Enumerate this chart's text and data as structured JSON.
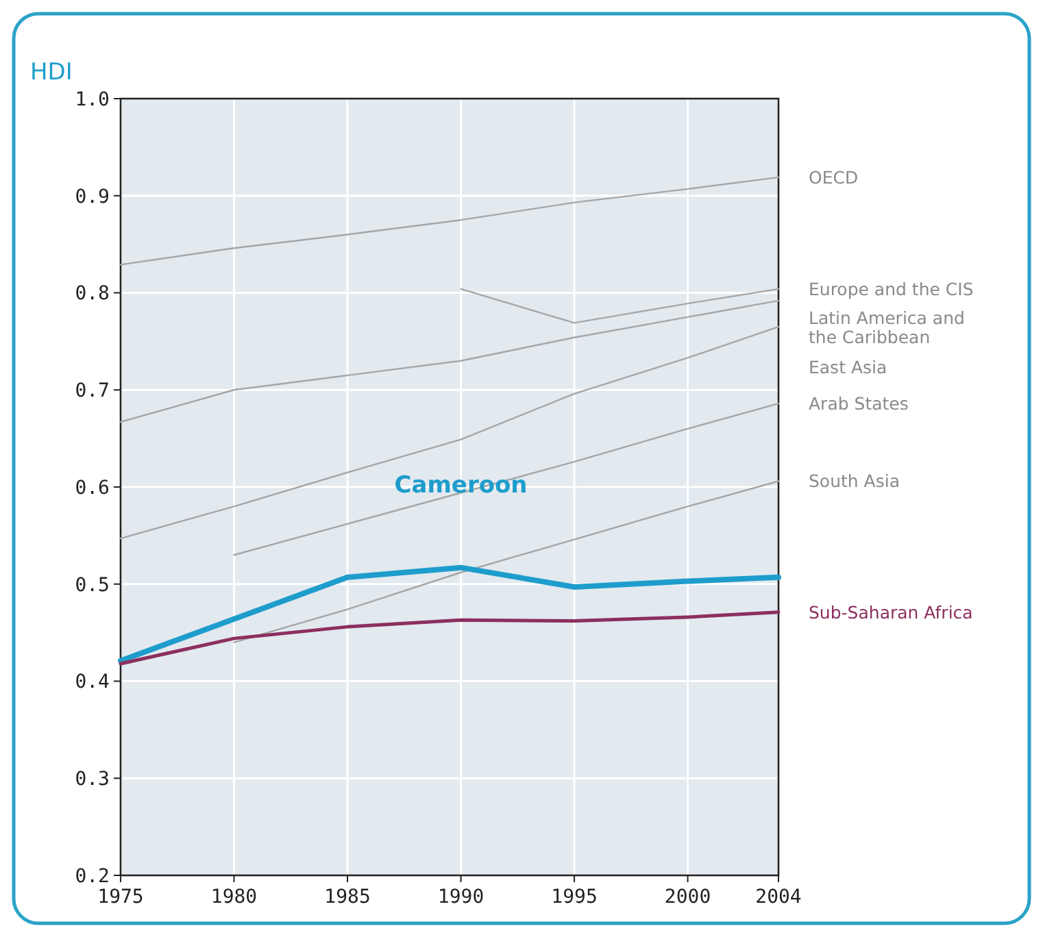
{
  "chart_data": {
    "type": "line",
    "ylabel": "HDI",
    "x": [
      1975,
      1980,
      1985,
      1990,
      1995,
      2000,
      2004
    ],
    "xlim": [
      1975,
      2004
    ],
    "xticks": [
      1975,
      1980,
      1985,
      1990,
      1995,
      2000,
      2004
    ],
    "ylim": [
      0.2,
      1.0
    ],
    "yticks": [
      {
        "value": 0.2,
        "label": "0.2"
      },
      {
        "value": 0.3,
        "label": "0.3"
      },
      {
        "value": 0.4,
        "label": "0.4"
      },
      {
        "value": 0.5,
        "label": "0.5"
      },
      {
        "value": 0.6,
        "label": "0.6"
      },
      {
        "value": 0.7,
        "label": "0.7"
      },
      {
        "value": 0.8,
        "label": "0.8"
      },
      {
        "value": 0.9,
        "label": "0.9"
      },
      {
        "value": 1.0,
        "label": "1.0"
      }
    ],
    "grid": true,
    "marker": "none",
    "line_style": "solid",
    "series": [
      {
        "name": "OECD",
        "color": "#a6a6a6",
        "values": [
          0.829,
          0.846,
          0.86,
          0.875,
          0.893,
          0.907,
          0.919
        ]
      },
      {
        "name": "Europe and the CIS",
        "color": "#a6a6a6",
        "values": [
          null,
          null,
          null,
          0.804,
          0.769,
          0.789,
          0.804
        ]
      },
      {
        "name": "Latin America and the Caribbean",
        "color": "#a6a6a6",
        "values": [
          0.667,
          0.7,
          0.715,
          0.73,
          0.754,
          0.775,
          0.792
        ]
      },
      {
        "name": "East Asia",
        "color": "#a6a6a6",
        "values": [
          0.547,
          0.58,
          0.615,
          0.649,
          0.696,
          0.733,
          0.765
        ]
      },
      {
        "name": "Arab States",
        "color": "#a6a6a6",
        "values": [
          null,
          0.53,
          0.562,
          0.594,
          0.626,
          0.66,
          0.686
        ]
      },
      {
        "name": "South Asia",
        "color": "#a6a6a6",
        "values": [
          null,
          0.44,
          0.474,
          0.512,
          0.546,
          0.58,
          0.606
        ]
      },
      {
        "name": "Cameroon",
        "color": "#1e9dcc",
        "values": [
          0.421,
          0.464,
          0.507,
          0.517,
          0.497,
          0.503,
          0.507
        ]
      },
      {
        "name": "Sub-Saharan Africa",
        "color": "#8c2f5e",
        "values": [
          0.418,
          0.444,
          0.456,
          0.463,
          0.462,
          0.466,
          0.471
        ]
      }
    ]
  }
}
